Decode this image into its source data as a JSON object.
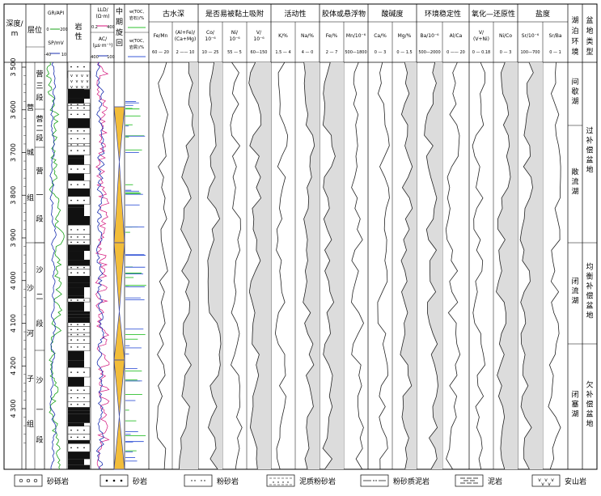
{
  "header": {
    "depth": [
      "深度/",
      "m"
    ],
    "stratum": "层位",
    "gr": "GR/API",
    "gr_scale": [
      "0",
      "200"
    ],
    "sp": "SP/mV",
    "sp_scale": [
      "-40",
      "10"
    ],
    "lith": [
      "岩",
      "性"
    ],
    "lld": [
      "LLD/",
      "(Ω·m)"
    ],
    "lld_scale": [
      "0.2",
      "400"
    ],
    "ac": [
      "AC/",
      "(μs·m⁻¹)"
    ],
    "ac_scale": [
      "400",
      "100"
    ],
    "cycle": [
      "中",
      "期",
      "旋",
      "回"
    ],
    "toc_rock": [
      "w(TOC,",
      "岩石)/%"
    ],
    "toc_mud": [
      "w(TOC,",
      "岩屑)/%"
    ]
  },
  "groups": [
    {
      "title": "古水深",
      "subs": [
        {
          "l1": "Fe/Mn",
          "l2": "",
          "scale": "60 — 20"
        },
        {
          "l1": "(Al+Fe)/",
          "l2": "(Ca+Mg)",
          "scale": "2 —— 10"
        }
      ]
    },
    {
      "title": "是否易被黏土吸附",
      "subs": [
        {
          "l1": "Co/",
          "l2": "10⁻⁶",
          "scale": "10 — 25"
        },
        {
          "l1": "Ni/",
          "l2": "10⁻⁶",
          "scale": "55 — 5"
        },
        {
          "l1": "V/",
          "l2": "10⁻⁶",
          "scale": "60—150"
        }
      ]
    },
    {
      "title": "活动性",
      "subs": [
        {
          "l1": "K/%",
          "l2": "",
          "scale": "1.5 — 4"
        },
        {
          "l1": "Na/%",
          "l2": "",
          "scale": "4 — 0"
        }
      ]
    },
    {
      "title": "胶体或悬浮物",
      "subs": [
        {
          "l1": "Fe/%",
          "l2": "",
          "scale": "2 — 7"
        },
        {
          "l1": "Mn/10⁻⁶",
          "l2": "",
          "scale": "500—1800"
        }
      ]
    },
    {
      "title": "酸碱度",
      "subs": [
        {
          "l1": "Ca/%",
          "l2": "",
          "scale": "0 — 3"
        },
        {
          "l1": "Mg/%",
          "l2": "",
          "scale": "0 — 1.5"
        }
      ]
    },
    {
      "title": "环境稳定性",
      "subs": [
        {
          "l1": "Ba/10⁻⁶",
          "l2": "",
          "scale": "500—2000"
        },
        {
          "l1": "Al/Ca",
          "l2": "",
          "scale": "0 —— 20"
        }
      ]
    },
    {
      "title": "氧化—还原性",
      "subs": [
        {
          "l1": "V/",
          "l2": "(V+Ni)",
          "scale": "0 — 0.18"
        },
        {
          "l1": "Ni/Co",
          "l2": "",
          "scale": "0 — 3"
        }
      ]
    },
    {
      "title": "盐度",
      "subs": [
        {
          "l1": "Sr/10⁻⁶",
          "l2": "",
          "scale": "100—700"
        },
        {
          "l1": "Sr/Ba",
          "l2": "",
          "scale": "0 — 1"
        }
      ]
    }
  ],
  "lake_env_title": [
    "湖",
    "泊",
    "环",
    "境"
  ],
  "basin_type_title": [
    "盆",
    "地",
    "类",
    "型"
  ],
  "depth_labels": [
    "3 500",
    "3 600",
    "3 700",
    "3 800",
    "3 900",
    "4 000",
    "4 100",
    "4 200",
    "4 300"
  ],
  "strata": {
    "formations": [
      {
        "chars": [
          "营",
          "城",
          "组"
        ]
      },
      {
        "chars": [
          "沙",
          "河",
          "子",
          "组"
        ]
      }
    ],
    "members": [
      {
        "chars": [
          "营",
          "三",
          "段"
        ]
      },
      {
        "chars": [
          "营",
          "二",
          "段"
        ]
      },
      {
        "chars": [
          "营",
          "一",
          "段"
        ]
      },
      {
        "chars": [
          "沙",
          "二",
          "段"
        ]
      },
      {
        "chars": [
          "沙",
          "一",
          "段"
        ]
      }
    ]
  },
  "lake_envs": [
    {
      "chars": [
        "间",
        "歇",
        "湖"
      ]
    },
    {
      "chars": [
        "敞",
        "流",
        "湖"
      ]
    },
    {
      "chars": [
        "闭",
        "流",
        "湖"
      ]
    },
    {
      "chars": [
        "闭",
        "塞",
        "湖"
      ]
    }
  ],
  "basin_types": [
    {
      "chars": [
        "过",
        "补",
        "偿",
        "盆",
        "地"
      ]
    },
    {
      "chars": [
        "均",
        "衡",
        "补",
        "偿",
        "盆",
        "地"
      ]
    },
    {
      "chars": [
        "欠",
        "补",
        "偿",
        "盆",
        "地"
      ]
    }
  ],
  "legend": [
    "砂砾岩",
    "砂岩",
    "粉砂岩",
    "泥质粉砂岩",
    "粉砂质泥岩",
    "泥岩",
    "安山岩"
  ],
  "colors": {
    "gr": "#1aa31a",
    "sp": "#1a2fb0",
    "lld": "#d4127a",
    "ac": "#1a2fb0",
    "toc_rock": "#2ec02e",
    "toc_mud": "#3a5ad8",
    "cycle_fill": "#f2bd3a",
    "cycle_edge": "#3a46a0",
    "shade": "#dcdcdc"
  }
}
